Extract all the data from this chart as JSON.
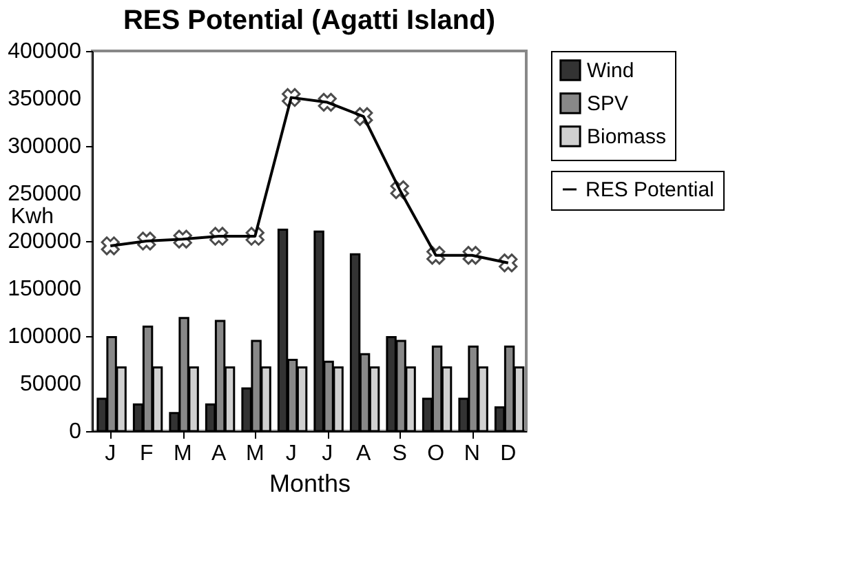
{
  "chart_data": {
    "type": "bar",
    "title": "RES Potential (Agatti Island)",
    "xlabel": "Months",
    "ylabel": "Kwh",
    "categories": [
      "J",
      "F",
      "M",
      "A",
      "M",
      "J",
      "J",
      "A",
      "S",
      "O",
      "N",
      "D"
    ],
    "series": [
      {
        "name": "Wind",
        "color": "#333333",
        "values": [
          34000,
          28000,
          19000,
          28000,
          45000,
          212000,
          210000,
          186000,
          99000,
          34000,
          34000,
          25000
        ]
      },
      {
        "name": "SPV",
        "color": "#888888",
        "values": [
          99000,
          110000,
          119000,
          116000,
          95000,
          75000,
          73000,
          81000,
          95000,
          89000,
          89000,
          89000
        ]
      },
      {
        "name": "Biomass",
        "color": "#d0d0d0",
        "values": [
          67000,
          67000,
          67000,
          67000,
          67000,
          67000,
          67000,
          67000,
          67000,
          67000,
          67000,
          67000
        ]
      },
      {
        "name": "RES Potential",
        "type": "line",
        "color": "#000000",
        "marker": "cross",
        "values": [
          195000,
          200000,
          202000,
          205000,
          205000,
          351000,
          346000,
          331000,
          254000,
          185000,
          185000,
          177000
        ]
      }
    ],
    "ylim": [
      0,
      400000
    ],
    "yticks": [
      0,
      50000,
      100000,
      150000,
      200000,
      250000,
      300000,
      350000,
      400000
    ],
    "grid": false,
    "legend": "top right"
  }
}
